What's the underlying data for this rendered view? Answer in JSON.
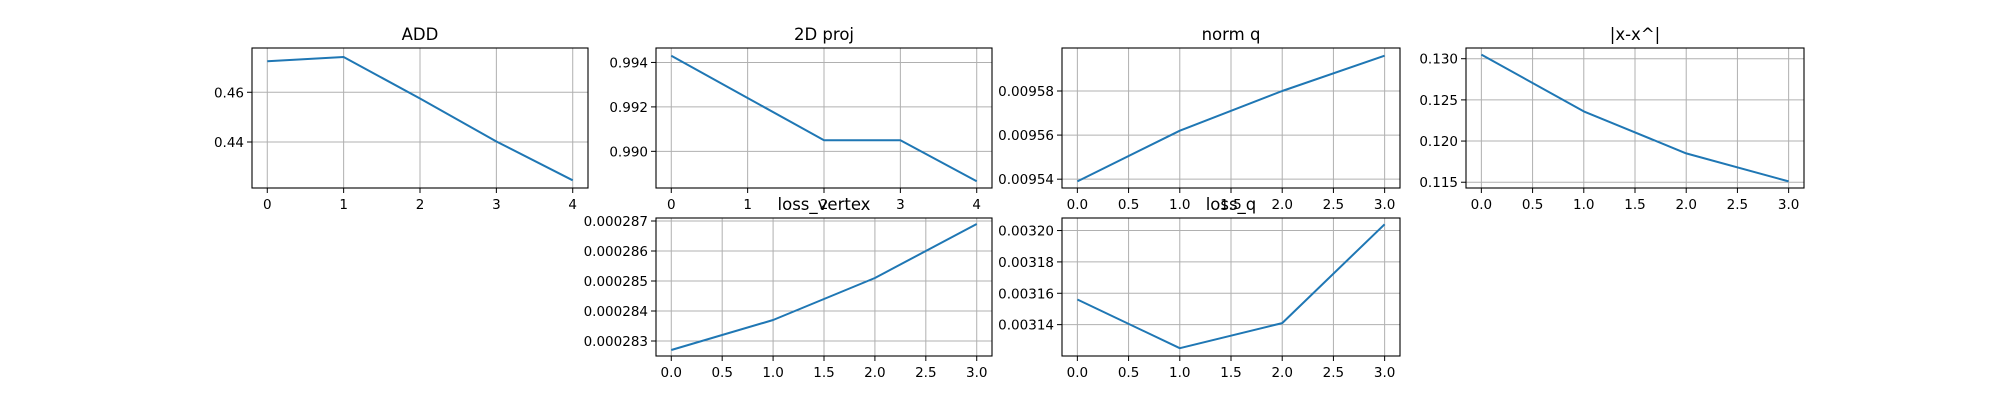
{
  "chart_data": [
    {
      "type": "line",
      "title": "ADD",
      "x": [
        0,
        1,
        2,
        3,
        4
      ],
      "y": [
        0.4725,
        0.4742,
        0.4575,
        0.4402,
        0.4246
      ],
      "xlim": [
        -0.2,
        4.2
      ],
      "ylim": [
        0.4215,
        0.4778
      ],
      "xticks": [
        0,
        1,
        2,
        3,
        4
      ],
      "xticklabels": [
        "0",
        "1",
        "2",
        "3",
        "4"
      ],
      "yticks": [
        0.44,
        0.46
      ],
      "yticklabels": [
        "0.44",
        "0.46"
      ],
      "grid": true,
      "color": "#1f77b4"
    },
    {
      "type": "line",
      "title": "2D proj",
      "x": [
        0,
        1,
        2,
        3,
        4
      ],
      "y": [
        0.9943,
        0.9924,
        0.9905,
        0.9905,
        0.98865
      ],
      "xlim": [
        -0.2,
        4.2
      ],
      "ylim": [
        0.98835,
        0.99465
      ],
      "xticks": [
        0,
        1,
        2,
        3,
        4
      ],
      "xticklabels": [
        "0",
        "1",
        "2",
        "3",
        "4"
      ],
      "yticks": [
        0.99,
        0.992,
        0.994
      ],
      "yticklabels": [
        "0.990",
        "0.992",
        "0.994"
      ],
      "grid": true,
      "color": "#1f77b4"
    },
    {
      "type": "line",
      "title": "norm q",
      "x": [
        0,
        1,
        2,
        3
      ],
      "y": [
        0.009539,
        0.009562,
        0.00958,
        0.009596
      ],
      "xlim": [
        -0.15,
        3.15
      ],
      "ylim": [
        0.009536,
        0.0095995
      ],
      "xticks": [
        0,
        0.5,
        1,
        1.5,
        2,
        2.5,
        3
      ],
      "xticklabels": [
        "0.0",
        "0.5",
        "1.0",
        "1.5",
        "2.0",
        "2.5",
        "3.0"
      ],
      "yticks": [
        0.00954,
        0.00956,
        0.00958
      ],
      "yticklabels": [
        "0.00954",
        "0.00956",
        "0.00958"
      ],
      "grid": true,
      "color": "#1f77b4"
    },
    {
      "type": "line",
      "title": "|x-x^|",
      "x": [
        0,
        1,
        2,
        3
      ],
      "y": [
        0.1305,
        0.1236,
        0.1185,
        0.1151
      ],
      "xlim": [
        -0.15,
        3.15
      ],
      "ylim": [
        0.1143,
        0.1313
      ],
      "xticks": [
        0,
        0.5,
        1,
        1.5,
        2,
        2.5,
        3
      ],
      "xticklabels": [
        "0.0",
        "0.5",
        "1.0",
        "1.5",
        "2.0",
        "2.5",
        "3.0"
      ],
      "yticks": [
        0.115,
        0.12,
        0.125,
        0.13
      ],
      "yticklabels": [
        "0.115",
        "0.120",
        "0.125",
        "0.130"
      ],
      "grid": true,
      "color": "#1f77b4"
    },
    {
      "type": "line",
      "title": "loss_vertex",
      "x": [
        0,
        1,
        2,
        3
      ],
      "y": [
        0.0002827,
        0.0002837,
        0.0002851,
        0.0002869
      ],
      "xlim": [
        -0.15,
        3.15
      ],
      "ylim": [
        0.0002825,
        0.0002871
      ],
      "xticks": [
        0,
        0.5,
        1,
        1.5,
        2,
        2.5,
        3
      ],
      "xticklabels": [
        "0.0",
        "0.5",
        "1.0",
        "1.5",
        "2.0",
        "2.5",
        "3.0"
      ],
      "yticks": [
        0.000283,
        0.000284,
        0.000285,
        0.000286,
        0.000287
      ],
      "yticklabels": [
        "0.000283",
        "0.000284",
        "0.000285",
        "0.000286",
        "0.000287"
      ],
      "grid": true,
      "color": "#1f77b4"
    },
    {
      "type": "line",
      "title": "loss_q",
      "x": [
        0,
        1,
        2,
        3
      ],
      "y": [
        0.003156,
        0.003125,
        0.003141,
        0.003204
      ],
      "xlim": [
        -0.15,
        3.15
      ],
      "ylim": [
        0.00312,
        0.003208
      ],
      "xticks": [
        0,
        0.5,
        1,
        1.5,
        2,
        2.5,
        3
      ],
      "xticklabels": [
        "0.0",
        "0.5",
        "1.0",
        "1.5",
        "2.0",
        "2.5",
        "3.0"
      ],
      "yticks": [
        0.00314,
        0.00316,
        0.00318,
        0.0032
      ],
      "yticklabels": [
        "0.00314",
        "0.00316",
        "0.00318",
        "0.00320"
      ],
      "grid": true,
      "color": "#1f77b4"
    }
  ]
}
